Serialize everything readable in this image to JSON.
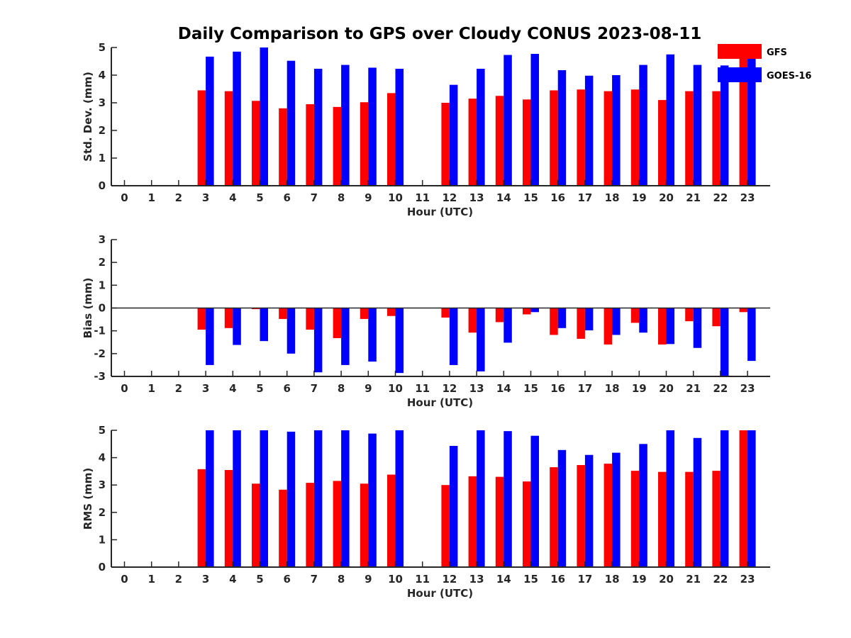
{
  "figure": {
    "title": "Daily Comparison to GPS over Cloudy CONUS 2023-08-11"
  },
  "legend": {
    "placement": "top-right",
    "items": [
      {
        "label": "GFS",
        "color": "#ff0000"
      },
      {
        "label": "GOES-16",
        "color": "#0000ff"
      }
    ]
  },
  "chart_data": [
    {
      "type": "bar",
      "xlabel": "Hour (UTC)",
      "ylabel": "Std. Dev. (mm)",
      "ylim": [
        0,
        5
      ],
      "yticks": [
        "0",
        "1",
        "2",
        "3",
        "4",
        "5"
      ],
      "categories": [
        "0",
        "1",
        "2",
        "3",
        "4",
        "5",
        "6",
        "7",
        "8",
        "9",
        "10",
        "11",
        "12",
        "13",
        "14",
        "15",
        "16",
        "17",
        "18",
        "19",
        "20",
        "21",
        "22",
        "23"
      ],
      "series": [
        {
          "name": "GFS",
          "color": "#ff0000",
          "values": [
            null,
            null,
            null,
            3.45,
            3.42,
            3.07,
            2.8,
            2.95,
            2.85,
            3.02,
            3.35,
            null,
            3.0,
            3.15,
            3.25,
            3.12,
            3.45,
            3.48,
            3.42,
            3.48,
            3.1,
            3.42,
            3.42,
            5.0
          ]
        },
        {
          "name": "GOES-16",
          "color": "#0000ff",
          "values": [
            null,
            null,
            null,
            4.67,
            4.85,
            5.0,
            4.52,
            4.23,
            4.37,
            4.27,
            4.23,
            null,
            3.65,
            4.23,
            4.73,
            4.77,
            4.18,
            3.98,
            4.0,
            4.37,
            4.75,
            4.37,
            4.35,
            5.0
          ]
        }
      ]
    },
    {
      "type": "bar",
      "xlabel": "Hour (UTC)",
      "ylabel": "Bias (mm)",
      "ylim": [
        -3,
        3
      ],
      "yticks": [
        "-3",
        "-2",
        "-1",
        "0",
        "1",
        "2",
        "3"
      ],
      "categories": [
        "0",
        "1",
        "2",
        "3",
        "4",
        "5",
        "6",
        "7",
        "8",
        "9",
        "10",
        "11",
        "12",
        "13",
        "14",
        "15",
        "16",
        "17",
        "18",
        "19",
        "20",
        "21",
        "22",
        "23"
      ],
      "series": [
        {
          "name": "GFS",
          "color": "#ff0000",
          "values": [
            null,
            null,
            null,
            -0.95,
            -0.88,
            -0.05,
            -0.48,
            -0.95,
            -1.32,
            -0.48,
            -0.35,
            null,
            -0.42,
            -1.08,
            -0.62,
            -0.28,
            -1.18,
            -1.35,
            -1.6,
            -0.65,
            -1.6,
            -0.58,
            -0.8,
            -0.18
          ]
        },
        {
          "name": "GOES-16",
          "color": "#0000ff",
          "values": [
            null,
            null,
            null,
            -2.5,
            -1.62,
            -1.45,
            -2.0,
            -2.82,
            -2.5,
            -2.35,
            -2.85,
            null,
            -2.5,
            -2.78,
            -1.52,
            -0.18,
            -0.88,
            -0.98,
            -1.18,
            -1.08,
            -1.58,
            -1.75,
            -3.0,
            -2.32
          ]
        }
      ]
    },
    {
      "type": "bar",
      "xlabel": "Hour (UTC)",
      "ylabel": "RMS (mm)",
      "ylim": [
        0,
        5
      ],
      "yticks": [
        "0",
        "1",
        "2",
        "3",
        "4",
        "5"
      ],
      "categories": [
        "0",
        "1",
        "2",
        "3",
        "4",
        "5",
        "6",
        "7",
        "8",
        "9",
        "10",
        "11",
        "12",
        "13",
        "14",
        "15",
        "16",
        "17",
        "18",
        "19",
        "20",
        "21",
        "22",
        "23"
      ],
      "series": [
        {
          "name": "GFS",
          "color": "#ff0000",
          "values": [
            null,
            null,
            null,
            3.58,
            3.55,
            3.05,
            2.83,
            3.08,
            3.15,
            3.05,
            3.38,
            null,
            3.0,
            3.32,
            3.3,
            3.13,
            3.65,
            3.73,
            3.78,
            3.52,
            3.48,
            3.48,
            3.52,
            5.0
          ]
        },
        {
          "name": "GOES-16",
          "color": "#0000ff",
          "values": [
            null,
            null,
            null,
            5.0,
            5.0,
            5.0,
            4.95,
            5.0,
            5.0,
            4.88,
            5.0,
            null,
            4.43,
            5.0,
            4.97,
            4.8,
            4.28,
            4.1,
            4.18,
            4.5,
            5.0,
            4.72,
            5.0,
            5.0
          ]
        }
      ]
    }
  ]
}
